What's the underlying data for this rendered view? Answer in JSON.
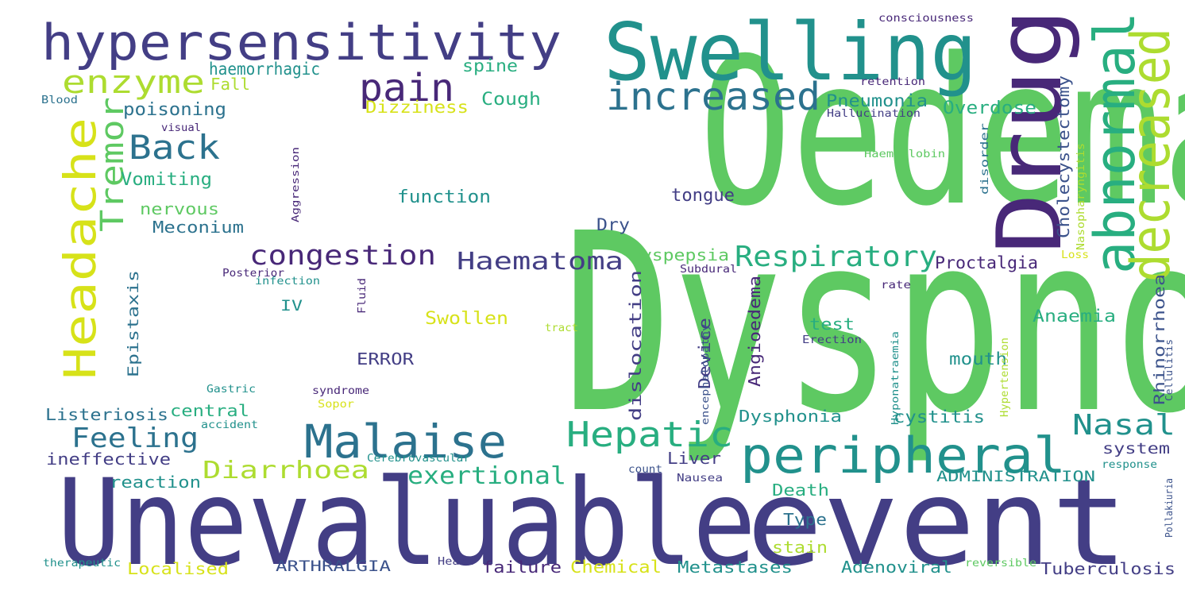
{
  "palette": {
    "green": "#5ec962",
    "teal": "#21918c",
    "darkteal": "#2c728e",
    "blue": "#3b528b",
    "indigo": "#433e85",
    "purple": "#482878",
    "yellow": "#d7e219",
    "lime": "#addc30",
    "aqua": "#28ae80"
  },
  "words": [
    {
      "id": "w0",
      "text": "Oedema",
      "color": "green"
    },
    {
      "id": "w1",
      "text": "Dyspnoea",
      "color": "green"
    },
    {
      "id": "w2",
      "text": "Unevaluable",
      "color": "indigo"
    },
    {
      "id": "w3",
      "text": "event",
      "color": "indigo"
    },
    {
      "id": "w4",
      "text": "Swelling",
      "color": "teal"
    },
    {
      "id": "w5",
      "text": "Drug",
      "color": "purple"
    },
    {
      "id": "w6",
      "text": "hypersensitivity",
      "color": "indigo"
    },
    {
      "id": "w7",
      "text": "abnormal",
      "color": "aqua"
    },
    {
      "id": "w8",
      "text": "decreased",
      "color": "lime"
    },
    {
      "id": "w9",
      "text": "peripheral",
      "color": "teal"
    },
    {
      "id": "w10",
      "text": "Malaise",
      "color": "darkteal"
    },
    {
      "id": "w11",
      "text": "Headache",
      "color": "yellow"
    },
    {
      "id": "w12",
      "text": "increased",
      "color": "darkteal"
    },
    {
      "id": "w13",
      "text": "pain",
      "color": "purple"
    },
    {
      "id": "w14",
      "text": "enzyme",
      "color": "lime"
    },
    {
      "id": "w15",
      "text": "Back",
      "color": "darkteal"
    },
    {
      "id": "w16",
      "text": "Tremor",
      "color": "green"
    },
    {
      "id": "w17",
      "text": "Hepatic",
      "color": "aqua"
    },
    {
      "id": "w18",
      "text": "Respiratory",
      "color": "aqua"
    },
    {
      "id": "w19",
      "text": "congestion",
      "color": "purple"
    },
    {
      "id": "w20",
      "text": "Haematoma",
      "color": "indigo"
    },
    {
      "id": "w21",
      "text": "Feeling",
      "color": "darkteal"
    },
    {
      "id": "w22",
      "text": "Nasal",
      "color": "teal"
    },
    {
      "id": "w23",
      "text": "Diarrhoea",
      "color": "lime"
    },
    {
      "id": "w24",
      "text": "exertional",
      "color": "aqua"
    },
    {
      "id": "w25",
      "text": "haemorrhagic",
      "color": "teal"
    },
    {
      "id": "w26",
      "text": "spine",
      "color": "aqua"
    },
    {
      "id": "w27",
      "text": "Fall",
      "color": "lime"
    },
    {
      "id": "w28",
      "text": "poisoning",
      "color": "darkteal"
    },
    {
      "id": "w29",
      "text": "Cough",
      "color": "aqua"
    },
    {
      "id": "w30",
      "text": "Pneumonia",
      "color": "teal"
    },
    {
      "id": "w31",
      "text": "Overdose",
      "color": "aqua"
    },
    {
      "id": "w32",
      "text": "Dizziness",
      "color": "yellow"
    },
    {
      "id": "w33",
      "text": "Cholecystectomy",
      "color": "blue"
    },
    {
      "id": "w34",
      "text": "Vomiting",
      "color": "aqua"
    },
    {
      "id": "w35",
      "text": "function",
      "color": "teal"
    },
    {
      "id": "w36",
      "text": "tongue",
      "color": "indigo"
    },
    {
      "id": "w37",
      "text": "nervous",
      "color": "green"
    },
    {
      "id": "w38",
      "text": "Meconium",
      "color": "darkteal"
    },
    {
      "id": "w39",
      "text": "Dry",
      "color": "blue"
    },
    {
      "id": "w40",
      "text": "Dyspepsia",
      "color": "green"
    },
    {
      "id": "w41",
      "text": "Proctalgia",
      "color": "purple"
    },
    {
      "id": "w42",
      "text": "Epistaxis",
      "color": "darkteal"
    },
    {
      "id": "w43",
      "text": "IV",
      "color": "teal"
    },
    {
      "id": "w44",
      "text": "Swollen",
      "color": "yellow"
    },
    {
      "id": "w45",
      "text": "dislocation",
      "color": "indigo"
    },
    {
      "id": "w46",
      "text": "Angioedema",
      "color": "purple"
    },
    {
      "id": "w47",
      "text": "Device",
      "color": "indigo"
    },
    {
      "id": "w48",
      "text": "test",
      "color": "aqua"
    },
    {
      "id": "w49",
      "text": "Anaemia",
      "color": "aqua"
    },
    {
      "id": "w50",
      "text": "Rhinorrhoea",
      "color": "blue"
    },
    {
      "id": "w51",
      "text": "ERROR",
      "color": "indigo"
    },
    {
      "id": "w52",
      "text": "mouth",
      "color": "teal"
    },
    {
      "id": "w53",
      "text": "Listeriosis",
      "color": "darkteal"
    },
    {
      "id": "w54",
      "text": "central",
      "color": "aqua"
    },
    {
      "id": "w55",
      "text": "Dysphonia",
      "color": "teal"
    },
    {
      "id": "w56",
      "text": "cystitis",
      "color": "teal"
    },
    {
      "id": "w57",
      "text": "system",
      "color": "indigo"
    },
    {
      "id": "w58",
      "text": "ineffective",
      "color": "indigo"
    },
    {
      "id": "w59",
      "text": "Liver",
      "color": "indigo"
    },
    {
      "id": "w60",
      "text": "reaction",
      "color": "teal"
    },
    {
      "id": "w61",
      "text": "ADMINISTRATION",
      "color": "teal"
    },
    {
      "id": "w62",
      "text": "Death",
      "color": "aqua"
    },
    {
      "id": "w63",
      "text": "Type",
      "color": "darkteal"
    },
    {
      "id": "w64",
      "text": "stain",
      "color": "lime"
    },
    {
      "id": "w65",
      "text": "ARTHRALGIA",
      "color": "blue"
    },
    {
      "id": "w66",
      "text": "Localised",
      "color": "yellow"
    },
    {
      "id": "w67",
      "text": "failure",
      "color": "purple"
    },
    {
      "id": "w68",
      "text": "Chemical",
      "color": "yellow"
    },
    {
      "id": "w69",
      "text": "Metastases",
      "color": "teal"
    },
    {
      "id": "w70",
      "text": "Adenoviral",
      "color": "teal"
    },
    {
      "id": "w71",
      "text": "Tuberculosis",
      "color": "indigo"
    },
    {
      "id": "w72",
      "text": "consciousness",
      "color": "purple"
    },
    {
      "id": "w73",
      "text": "retention",
      "color": "purple"
    },
    {
      "id": "w74",
      "text": "Hallucination",
      "color": "indigo"
    },
    {
      "id": "w75",
      "text": "Blood",
      "color": "darkteal"
    },
    {
      "id": "w76",
      "text": "visual",
      "color": "purple"
    },
    {
      "id": "w77",
      "text": "Haemoglobin",
      "color": "green"
    },
    {
      "id": "w78",
      "text": "disorder",
      "color": "darkteal"
    },
    {
      "id": "w79",
      "text": "Nasopharyngitis",
      "color": "lime"
    },
    {
      "id": "w80",
      "text": "Aggression",
      "color": "purple"
    },
    {
      "id": "w81",
      "text": "Posterior",
      "color": "purple"
    },
    {
      "id": "w82",
      "text": "infection",
      "color": "teal"
    },
    {
      "id": "w83",
      "text": "Subdural",
      "color": "purple"
    },
    {
      "id": "w84",
      "text": "Loss",
      "color": "yellow"
    },
    {
      "id": "w85",
      "text": "rate",
      "color": "purple"
    },
    {
      "id": "w86",
      "text": "Fluid",
      "color": "purple"
    },
    {
      "id": "w87",
      "text": "tract",
      "color": "lime"
    },
    {
      "id": "w88",
      "text": "encephalopathy",
      "color": "blue"
    },
    {
      "id": "w89",
      "text": "Erection",
      "color": "indigo"
    },
    {
      "id": "w90",
      "text": "Hyponatraemia",
      "color": "teal"
    },
    {
      "id": "w91",
      "text": "Hypertension",
      "color": "lime"
    },
    {
      "id": "w92",
      "text": "Cellulitis",
      "color": "blue"
    },
    {
      "id": "w93",
      "text": "Gastric",
      "color": "teal"
    },
    {
      "id": "w94",
      "text": "syndrome",
      "color": "purple"
    },
    {
      "id": "w95",
      "text": "Sopor",
      "color": "yellow"
    },
    {
      "id": "w96",
      "text": "accident",
      "color": "teal"
    },
    {
      "id": "w97",
      "text": "Cerebrovascular",
      "color": "teal"
    },
    {
      "id": "w98",
      "text": "count",
      "color": "blue"
    },
    {
      "id": "w99",
      "text": "Nausea",
      "color": "indigo"
    },
    {
      "id": "w100",
      "text": "response",
      "color": "teal"
    },
    {
      "id": "w101",
      "text": "Pollakiuria",
      "color": "blue"
    },
    {
      "id": "w102",
      "text": "therapeutic",
      "color": "teal"
    },
    {
      "id": "w103",
      "text": "Heart",
      "color": "indigo"
    },
    {
      "id": "w104",
      "text": "reversible",
      "color": "green"
    }
  ]
}
